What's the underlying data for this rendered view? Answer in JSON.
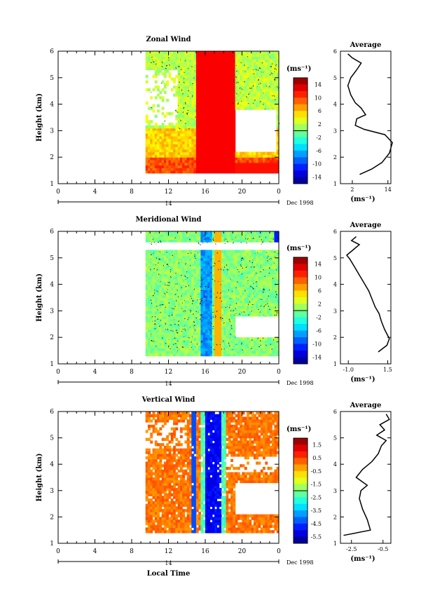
{
  "chart_data": [
    {
      "type": "heatmap",
      "title": "Zonal Wind",
      "ylabel": "Height (km)",
      "xlabel": "",
      "xlim": [
        0,
        24
      ],
      "ylim": [
        1,
        6
      ],
      "xticks": [
        "0",
        "4",
        "8",
        "12",
        "16",
        "20",
        "0"
      ],
      "yticks": [
        "1",
        "2",
        "3",
        "4",
        "5",
        "6"
      ],
      "date_axis": {
        "ticks": [
          "14"
        ],
        "label": "Dec 1998"
      },
      "colorbar": {
        "unit": "(ms⁻¹)",
        "min": -16,
        "max": 16,
        "ticks": [
          "14",
          "10",
          "6",
          "2",
          "-2",
          "-6",
          "-10",
          "-14"
        ]
      }
    },
    {
      "type": "line",
      "title": "Average",
      "xlabel": "(ms⁻¹)",
      "xticks": [
        "2",
        "14"
      ],
      "xlim": [
        -2,
        15
      ],
      "ylim": [
        1,
        6
      ],
      "yticks": [
        "1",
        "2",
        "3",
        "4",
        "5",
        "6"
      ],
      "points": [
        [
          4.5,
          1.35
        ],
        [
          8.5,
          1.55
        ],
        [
          12,
          1.8
        ],
        [
          14.5,
          2.15
        ],
        [
          15.5,
          2.55
        ],
        [
          13,
          2.85
        ],
        [
          6,
          3.05
        ],
        [
          3,
          3.2
        ],
        [
          3.5,
          3.45
        ],
        [
          6.5,
          3.6
        ],
        [
          5,
          3.85
        ],
        [
          3,
          4.05
        ],
        [
          1.5,
          4.35
        ],
        [
          0.5,
          4.7
        ],
        [
          1.5,
          5.0
        ],
        [
          3.5,
          5.3
        ],
        [
          5,
          5.55
        ],
        [
          2,
          5.75
        ],
        [
          0.5,
          5.9
        ]
      ]
    },
    {
      "type": "heatmap",
      "title": "Meridional Wind",
      "ylabel": "Height (km)",
      "xlabel": "",
      "xlim": [
        0,
        24
      ],
      "ylim": [
        1,
        6
      ],
      "xticks": [
        "0",
        "4",
        "8",
        "12",
        "16",
        "20",
        "0"
      ],
      "yticks": [
        "1",
        "2",
        "3",
        "4",
        "5",
        "6"
      ],
      "date_axis": {
        "ticks": [
          "14"
        ],
        "label": "Dec 1998"
      },
      "colorbar": {
        "unit": "(ms⁻¹)",
        "min": -16,
        "max": 16,
        "ticks": [
          "14",
          "10",
          "6",
          "2",
          "-2",
          "-6",
          "-10",
          "-14"
        ]
      }
    },
    {
      "type": "line",
      "title": "Average",
      "xlabel": "(ms⁻¹)",
      "xticks": [
        "-1.0",
        "1.5"
      ],
      "xlim": [
        -1.5,
        1.7
      ],
      "ylim": [
        1,
        6
      ],
      "yticks": [
        "1",
        "2",
        "3",
        "4",
        "5",
        "6"
      ],
      "points": [
        [
          0.9,
          1.45
        ],
        [
          1.45,
          1.7
        ],
        [
          1.6,
          1.95
        ],
        [
          1.3,
          2.3
        ],
        [
          1.1,
          2.6
        ],
        [
          0.95,
          2.9
        ],
        [
          0.7,
          3.15
        ],
        [
          0.5,
          3.45
        ],
        [
          0.3,
          3.75
        ],
        [
          0.0,
          4.05
        ],
        [
          -0.3,
          4.35
        ],
        [
          -0.6,
          4.65
        ],
        [
          -0.9,
          4.95
        ],
        [
          -1.1,
          5.1
        ],
        [
          -0.7,
          5.3
        ],
        [
          -0.3,
          5.5
        ],
        [
          -0.8,
          5.65
        ],
        [
          -0.5,
          5.8
        ]
      ]
    },
    {
      "type": "heatmap",
      "title": "Vertical Wind",
      "ylabel": "Height (km)",
      "xlabel": "Local Time",
      "xlim": [
        0,
        24
      ],
      "ylim": [
        1,
        6
      ],
      "xticks": [
        "0",
        "4",
        "8",
        "12",
        "16",
        "20",
        "0"
      ],
      "yticks": [
        "1",
        "2",
        "3",
        "4",
        "5",
        "6"
      ],
      "date_axis": {
        "ticks": [
          "14"
        ],
        "label": "Dec 1998"
      },
      "colorbar": {
        "unit": "(ms⁻¹)",
        "min": -6.0,
        "max": 2.0,
        "ticks": [
          "1.5",
          "0.5",
          "-0.5",
          "-1.5",
          "-2.5",
          "-3.5",
          "-4.5",
          "-5.5"
        ]
      }
    },
    {
      "type": "line",
      "title": "Average",
      "xlabel": "(ms⁻¹)",
      "xticks": [
        "-2.5",
        "-0.5"
      ],
      "xlim": [
        -3.2,
        0.0
      ],
      "ylim": [
        1,
        6
      ],
      "yticks": [
        "1",
        "2",
        "3",
        "4",
        "5",
        "6"
      ],
      "points": [
        [
          -3.0,
          1.3
        ],
        [
          -1.3,
          1.5
        ],
        [
          -1.5,
          1.9
        ],
        [
          -1.8,
          2.3
        ],
        [
          -2.0,
          2.7
        ],
        [
          -1.9,
          3.0
        ],
        [
          -1.5,
          3.2
        ],
        [
          -2.2,
          3.5
        ],
        [
          -1.8,
          3.8
        ],
        [
          -1.2,
          4.1
        ],
        [
          -0.8,
          4.4
        ],
        [
          -0.6,
          4.7
        ],
        [
          -0.3,
          4.9
        ],
        [
          -0.9,
          5.1
        ],
        [
          -0.4,
          5.3
        ],
        [
          -0.7,
          5.5
        ],
        [
          -0.1,
          5.7
        ],
        [
          -0.3,
          5.9
        ]
      ]
    }
  ]
}
